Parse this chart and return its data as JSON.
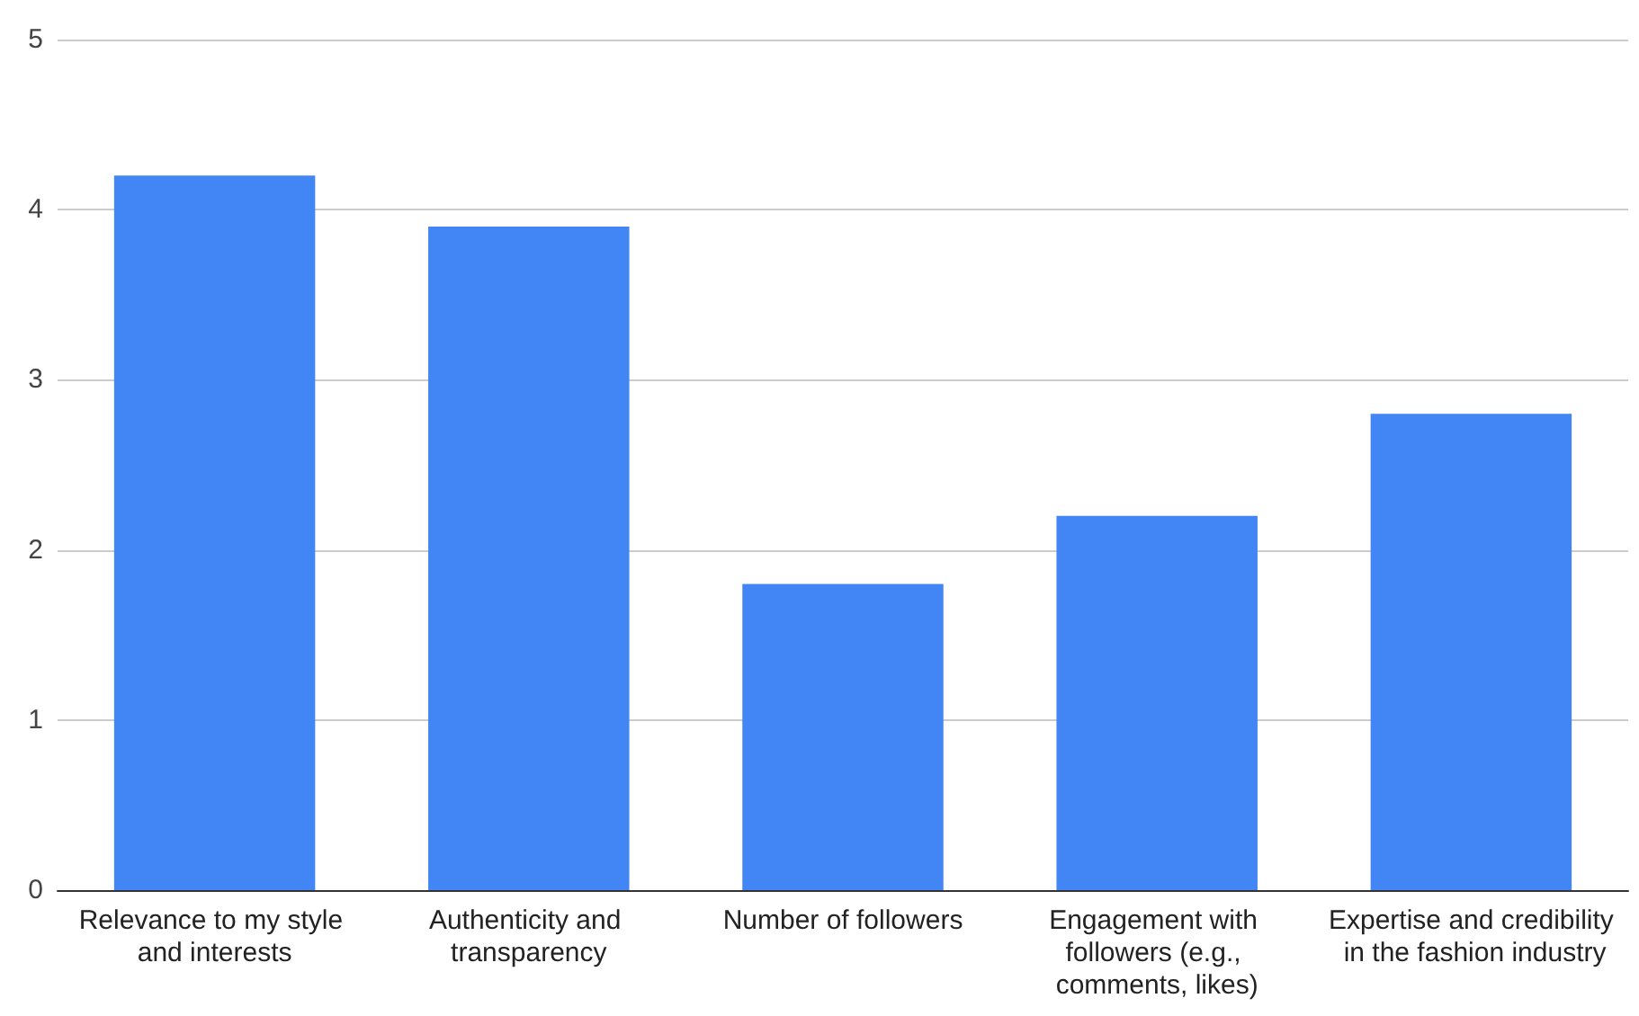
{
  "chart_data": {
    "type": "bar",
    "categories": [
      "Relevance to my style and interests",
      "Authenticity and transparency",
      "Number of followers",
      "Engagement with followers (e.g., comments, likes)",
      "Expertise and credibility in the fashion industry"
    ],
    "values": [
      4.2,
      3.9,
      1.8,
      2.2,
      2.8
    ],
    "color": "#4285f4",
    "ylim": [
      0,
      5
    ],
    "yticks": [
      0,
      1,
      2,
      3,
      4,
      5
    ],
    "grid": "y"
  }
}
